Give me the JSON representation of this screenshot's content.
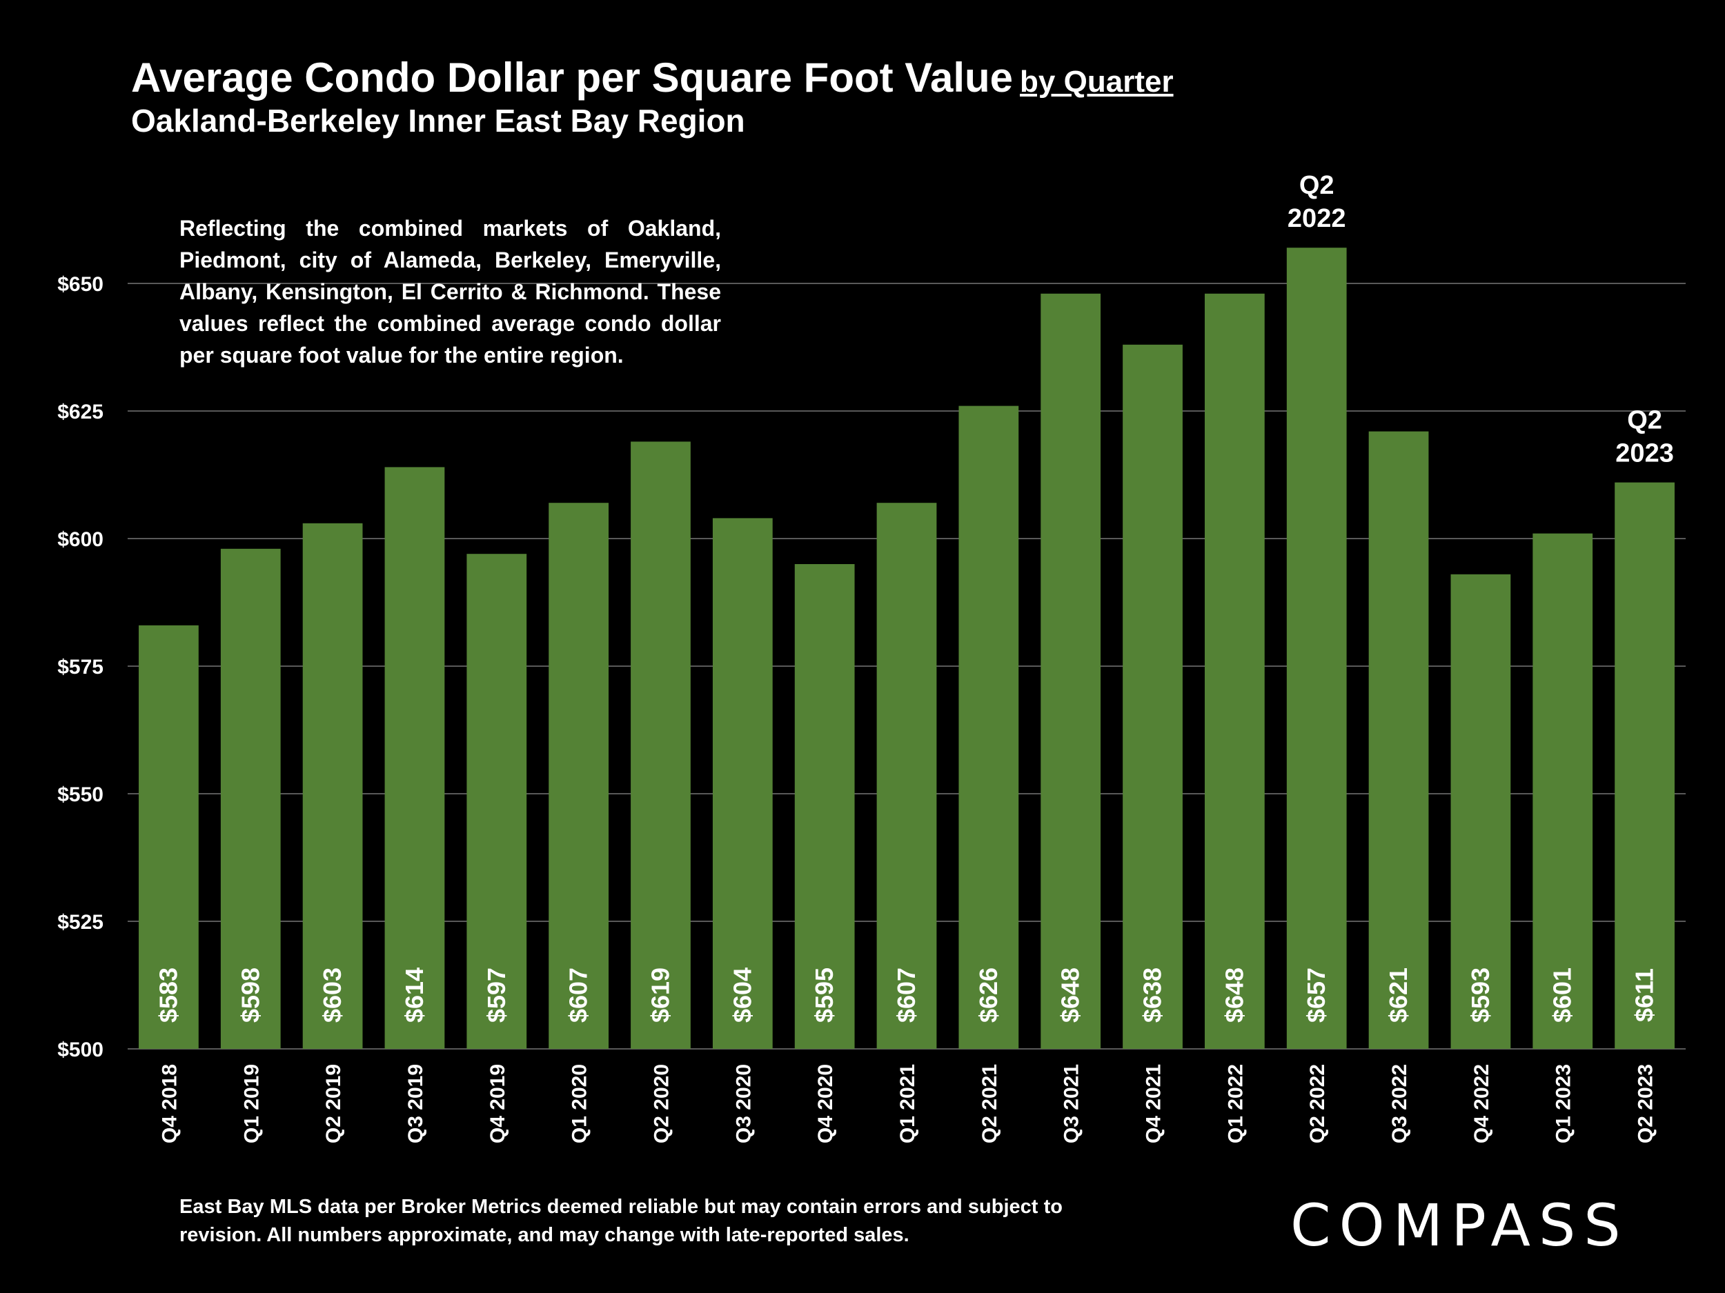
{
  "header": {
    "title": "Average Condo Dollar per Square Foot Value",
    "title_suffix": "by Quarter",
    "subtitle": "Oakland-Berkeley Inner East Bay Region"
  },
  "note": "Reflecting the combined markets of Oakland, Piedmont, city of Alameda, Berkeley, Emeryville, Albany, Kensington, El Cerrito & Richmond. These values reflect the combined average condo dollar per square foot value for the entire region.",
  "footer": "East Bay MLS data per Broker Metrics  deemed reliable but may contain errors and subject to revision. All numbers approximate, and may change with late-reported sales.",
  "logo": "COMPASS",
  "colors": {
    "bar": "#548235",
    "background": "#000000",
    "grid": "#595959",
    "text": "#ffffff"
  },
  "chart_data": {
    "type": "bar",
    "title": "Average Condo Dollar per Square Foot Value by Quarter",
    "subtitle": "Oakland-Berkeley Inner East Bay Region",
    "xlabel": "",
    "ylabel": "",
    "ylim": [
      500,
      665
    ],
    "yticks": [
      500,
      525,
      550,
      575,
      600,
      625,
      650
    ],
    "ytick_labels": [
      "$500",
      "$525",
      "$550",
      "$575",
      "$600",
      "$625",
      "$650"
    ],
    "grid": true,
    "categories": [
      "Q4 2018",
      "Q1 2019",
      "Q2 2019",
      "Q3 2019",
      "Q4 2019",
      "Q1 2020",
      "Q2 2020",
      "Q3 2020",
      "Q4 2020",
      "Q1 2021",
      "Q2 2021",
      "Q3 2021",
      "Q4 2021",
      "Q1 2022",
      "Q2 2022",
      "Q3 2022",
      "Q4 2022",
      "Q1 2023",
      "Q2 2023"
    ],
    "values": [
      583,
      598,
      603,
      614,
      597,
      607,
      619,
      604,
      595,
      607,
      626,
      648,
      638,
      648,
      657,
      621,
      593,
      601,
      611
    ],
    "data_labels": [
      "$583",
      "$598",
      "$603",
      "$614",
      "$597",
      "$607",
      "$619",
      "$604",
      "$595",
      "$607",
      "$626",
      "$648",
      "$638",
      "$648",
      "$657",
      "$621",
      "$593",
      "$601",
      "$611"
    ],
    "annotations": [
      {
        "category": "Q2 2022",
        "lines": [
          "Q2",
          "2022"
        ]
      },
      {
        "category": "Q2 2023",
        "lines": [
          "Q2",
          "2023"
        ]
      }
    ]
  }
}
